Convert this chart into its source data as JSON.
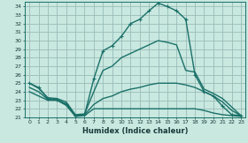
{
  "xlabel": "Humidex (Indice chaleur)",
  "background_color": "#c8e8e0",
  "grid_color": "#9abcb8",
  "line_color": "#1a7068",
  "xlim": [
    -0.5,
    23.5
  ],
  "ylim": [
    21,
    34.6
  ],
  "yticks": [
    21,
    22,
    23,
    24,
    25,
    26,
    27,
    28,
    29,
    30,
    31,
    32,
    33,
    34
  ],
  "xticks": [
    0,
    1,
    2,
    3,
    4,
    5,
    6,
    7,
    8,
    9,
    10,
    11,
    12,
    13,
    14,
    15,
    16,
    17,
    18,
    19,
    20,
    21,
    22,
    23
  ],
  "series": {
    "main": {
      "x": [
        0,
        1,
        2,
        3,
        4,
        5,
        6,
        7,
        8,
        9,
        10,
        11,
        12,
        13,
        14,
        15,
        16,
        17,
        18,
        19,
        20,
        21,
        22,
        23
      ],
      "y": [
        25.0,
        24.5,
        23.2,
        23.1,
        22.5,
        21.2,
        21.3,
        25.5,
        28.8,
        29.4,
        30.5,
        32.0,
        32.5,
        33.5,
        34.4,
        34.0,
        33.5,
        32.5,
        26.0,
        24.0,
        23.5,
        22.3,
        21.3,
        21.2
      ]
    },
    "max": {
      "x": [
        0,
        1,
        2,
        3,
        4,
        5,
        6,
        7,
        8,
        9,
        10,
        11,
        12,
        13,
        14,
        15,
        16,
        17,
        18,
        19,
        20,
        21,
        22,
        23
      ],
      "y": [
        25.0,
        24.4,
        23.3,
        23.2,
        22.8,
        21.3,
        21.4,
        24.0,
        26.5,
        27.0,
        28.0,
        28.5,
        29.0,
        29.5,
        30.0,
        29.8,
        29.5,
        26.5,
        26.3,
        24.3,
        23.8,
        23.2,
        22.2,
        21.2
      ]
    },
    "avg": {
      "x": [
        0,
        1,
        2,
        3,
        4,
        5,
        6,
        7,
        8,
        9,
        10,
        11,
        12,
        13,
        14,
        15,
        16,
        17,
        18,
        19,
        20,
        21,
        22,
        23
      ],
      "y": [
        24.5,
        24.0,
        23.1,
        23.0,
        22.6,
        21.2,
        21.3,
        22.5,
        23.2,
        23.5,
        24.0,
        24.3,
        24.5,
        24.8,
        25.0,
        25.0,
        25.0,
        24.8,
        24.5,
        24.0,
        23.5,
        22.8,
        21.8,
        21.2
      ]
    },
    "min": {
      "x": [
        0,
        1,
        2,
        3,
        4,
        5,
        6,
        7,
        8,
        9,
        10,
        11,
        12,
        13,
        14,
        15,
        16,
        17,
        18,
        19,
        20,
        21,
        22,
        23
      ],
      "y": [
        24.0,
        23.5,
        23.0,
        23.0,
        22.4,
        21.1,
        21.2,
        22.0,
        22.0,
        22.0,
        22.0,
        22.0,
        22.0,
        22.0,
        22.0,
        22.0,
        22.0,
        22.0,
        22.0,
        21.8,
        21.5,
        21.3,
        21.2,
        21.1
      ]
    }
  },
  "linewidth": 1.0,
  "markersize": 3.5
}
